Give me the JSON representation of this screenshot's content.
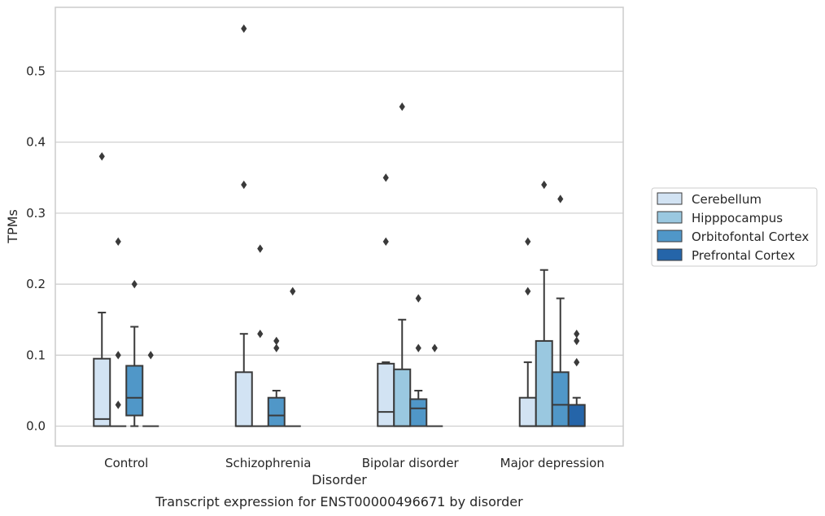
{
  "chart_data": {
    "type": "box",
    "caption": "Transcript expression for ENST00000496671 by disorder",
    "xlabel": "Disorder",
    "ylabel": "TPMs",
    "ylim": [
      -0.028,
      0.59
    ],
    "yticks": [
      0.0,
      0.1,
      0.2,
      0.3,
      0.4,
      0.5
    ],
    "ytick_labels": [
      "0.0",
      "0.1",
      "0.2",
      "0.3",
      "0.4",
      "0.5"
    ],
    "grid": "horizontal",
    "legend_position": "right",
    "categories": [
      "Control",
      "Schizophrenia",
      "Bipolar disorder",
      "Major depression"
    ],
    "series": [
      {
        "name": "Cerebellum",
        "color": "#d2e3f3",
        "boxes": [
          {
            "q1": 0.0,
            "median": 0.01,
            "q3": 0.095,
            "whisker_low": 0.0,
            "whisker_high": 0.16,
            "outliers": [
              0.38
            ]
          },
          {
            "q1": 0.0,
            "median": 0.0,
            "q3": 0.076,
            "whisker_low": 0.0,
            "whisker_high": 0.13,
            "outliers": [
              0.34,
              0.56
            ]
          },
          {
            "q1": 0.0,
            "median": 0.02,
            "q3": 0.088,
            "whisker_low": 0.0,
            "whisker_high": 0.09,
            "outliers": [
              0.26,
              0.35
            ]
          },
          {
            "q1": 0.0,
            "median": 0.0,
            "q3": 0.04,
            "whisker_low": 0.0,
            "whisker_high": 0.09,
            "outliers": [
              0.19,
              0.26
            ]
          }
        ]
      },
      {
        "name": "Hipppocampus",
        "color": "#9ac8e0",
        "boxes": [
          {
            "q1": 0.0,
            "median": 0.0,
            "q3": 0.0,
            "whisker_low": 0.0,
            "whisker_high": 0.0,
            "outliers": [
              0.03,
              0.1,
              0.26
            ]
          },
          {
            "q1": 0.0,
            "median": 0.0,
            "q3": 0.0,
            "whisker_low": 0.0,
            "whisker_high": 0.0,
            "outliers": [
              0.13,
              0.25
            ]
          },
          {
            "q1": 0.0,
            "median": 0.0,
            "q3": 0.08,
            "whisker_low": 0.0,
            "whisker_high": 0.15,
            "outliers": [
              0.45
            ]
          },
          {
            "q1": 0.0,
            "median": 0.0,
            "q3": 0.12,
            "whisker_low": 0.0,
            "whisker_high": 0.22,
            "outliers": [
              0.34
            ]
          }
        ]
      },
      {
        "name": "Orbitofontal Cortex",
        "color": "#5097c8",
        "boxes": [
          {
            "q1": 0.015,
            "median": 0.04,
            "q3": 0.085,
            "whisker_low": 0.0,
            "whisker_high": 0.14,
            "outliers": [
              0.2
            ]
          },
          {
            "q1": 0.0,
            "median": 0.015,
            "q3": 0.04,
            "whisker_low": 0.0,
            "whisker_high": 0.05,
            "outliers": [
              0.11,
              0.12
            ]
          },
          {
            "q1": 0.0,
            "median": 0.025,
            "q3": 0.038,
            "whisker_low": 0.0,
            "whisker_high": 0.05,
            "outliers": [
              0.11,
              0.18
            ]
          },
          {
            "q1": 0.0,
            "median": 0.03,
            "q3": 0.076,
            "whisker_low": 0.0,
            "whisker_high": 0.18,
            "outliers": [
              0.32
            ]
          }
        ]
      },
      {
        "name": "Prefrontal Cortex",
        "color": "#2565a9",
        "boxes": [
          {
            "q1": 0.0,
            "median": 0.0,
            "q3": 0.0,
            "whisker_low": 0.0,
            "whisker_high": 0.0,
            "outliers": [
              0.1
            ]
          },
          {
            "q1": 0.0,
            "median": 0.0,
            "q3": 0.0,
            "whisker_low": 0.0,
            "whisker_high": 0.0,
            "outliers": [
              0.19
            ]
          },
          {
            "q1": 0.0,
            "median": 0.0,
            "q3": 0.0,
            "whisker_low": 0.0,
            "whisker_high": 0.0,
            "outliers": [
              0.11
            ]
          },
          {
            "q1": 0.0,
            "median": 0.0,
            "q3": 0.03,
            "whisker_low": 0.0,
            "whisker_high": 0.04,
            "outliers": [
              0.09,
              0.12,
              0.13
            ]
          }
        ]
      }
    ]
  }
}
